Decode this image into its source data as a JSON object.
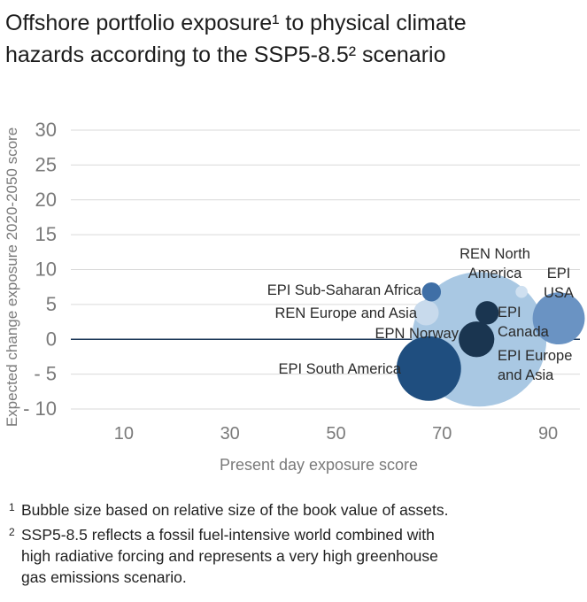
{
  "title_lines": [
    "Offshore portfolio exposure¹ to physical climate",
    "hazards according to the SSP5-8.5² scenario"
  ],
  "chart_data": {
    "type": "scatter",
    "subtype": "bubble",
    "xlabel": "Present day exposure score",
    "ylabel": "Expected change exposure 2020-2050 score",
    "xlim": [
      0,
      96
    ],
    "ylim": [
      -10,
      30
    ],
    "xticks": [
      {
        "value": 10,
        "label": "10"
      },
      {
        "value": 30,
        "label": "30"
      },
      {
        "value": 50,
        "label": "50"
      },
      {
        "value": 70,
        "label": "70"
      },
      {
        "value": 90,
        "label": "90"
      }
    ],
    "yticks": [
      {
        "value": 30,
        "label": "30"
      },
      {
        "value": 25,
        "label": "25"
      },
      {
        "value": 20,
        "label": "20"
      },
      {
        "value": 15,
        "label": "15"
      },
      {
        "value": 10,
        "label": "10"
      },
      {
        "value": 5,
        "label": "5"
      },
      {
        "value": 0,
        "label": "0"
      },
      {
        "value": -5,
        "label": "- 5"
      },
      {
        "value": -10,
        "label": "- 10"
      }
    ],
    "grid": true,
    "points": [
      {
        "name": "EPI Europe and Asia",
        "label_lines": [
          "EPI Europe",
          "and Asia"
        ],
        "x": 77,
        "y": 0,
        "size": 100,
        "color": "#a9c8e3",
        "label_anchor": "right"
      },
      {
        "name": "EPI South America",
        "label_lines": [
          "EPI South America"
        ],
        "x": 67.5,
        "y": -4.2,
        "size": 23,
        "color": "#1f4e7f",
        "label_anchor": "left"
      },
      {
        "name": "EPI USA",
        "label_lines": [
          "EPI",
          "USA"
        ],
        "x": 92,
        "y": 3,
        "size": 15,
        "color": "#6a93c3",
        "label_anchor": "above"
      },
      {
        "name": "EPN Norway",
        "label_lines": [
          "EPN Norway"
        ],
        "x": 76.5,
        "y": 0,
        "size": 7,
        "color": "#1a3550",
        "label_anchor": "left"
      },
      {
        "name": "REN Europe and Asia",
        "label_lines": [
          "REN Europe and Asia"
        ],
        "x": 67,
        "y": 3.8,
        "size": 3.5,
        "color": "#c8daec",
        "label_anchor": "left"
      },
      {
        "name": "EPI Canada",
        "label_lines": [
          "EPI",
          "Canada"
        ],
        "x": 78.5,
        "y": 3.8,
        "size": 3,
        "color": "#1a3550",
        "label_anchor": "right"
      },
      {
        "name": "EPI Sub-Saharan Africa",
        "label_lines": [
          "EPI Sub-Saharan Africa"
        ],
        "x": 68,
        "y": 6.8,
        "size": 2,
        "color": "#3f6fa6",
        "label_anchor": "left"
      },
      {
        "name": "REN North America",
        "label_lines": [
          "REN North",
          "America"
        ],
        "x": 85,
        "y": 6.8,
        "size": 0.8,
        "color": "#cfe0f0",
        "label_anchor": "above"
      }
    ]
  },
  "footnotes": [
    {
      "mark": "1",
      "lines": [
        "Bubble size based on relative size of the book value of assets."
      ]
    },
    {
      "mark": "2",
      "lines": [
        "SSP5-8.5 reflects a fossil fuel-intensive world combined with",
        "high radiative forcing and represents a very high greenhouse",
        "gas emissions scenario."
      ]
    }
  ]
}
